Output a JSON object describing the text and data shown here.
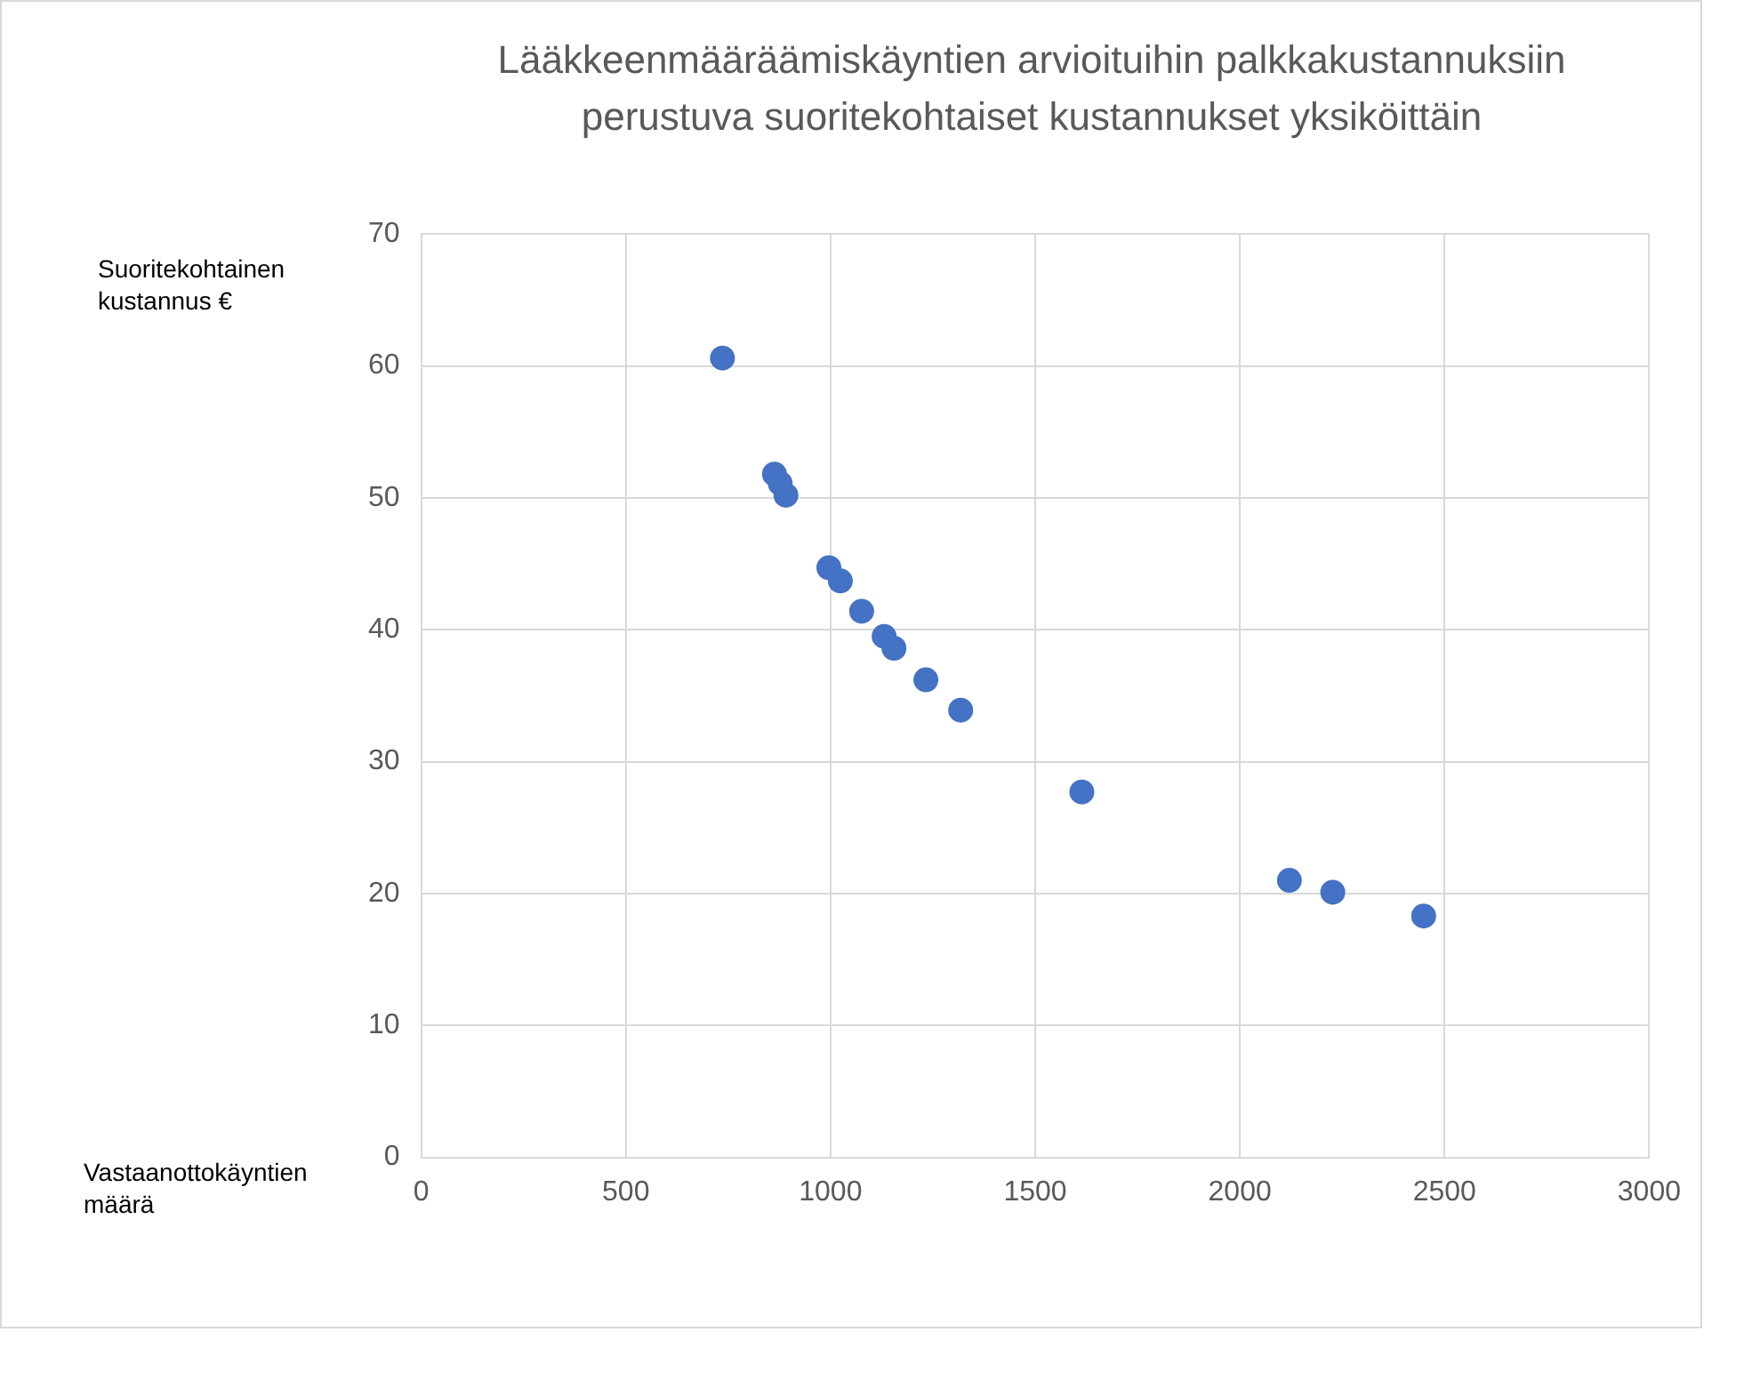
{
  "chart_data": {
    "type": "scatter",
    "title": "Lääkkeenmääräämiskäyntien arvioituihin palkkakustannuksiin\nperustuva suoritekohtaiset kustannukset yksiköittäin",
    "ylabel": "Suoritekohtainen\nkustannus €",
    "xlabel": "Vastaanottokäyntien\nmäärä",
    "x": [
      736,
      863,
      877,
      891,
      996,
      1024,
      1076,
      1131,
      1155,
      1233,
      1318,
      1614,
      2121,
      2227,
      2449
    ],
    "series": [
      {
        "color": "#4472c4",
        "values": [
          60.6,
          51.8,
          51.1,
          50.2,
          44.7,
          43.7,
          41.4,
          39.5,
          38.6,
          36.2,
          33.9,
          27.7,
          21.0,
          20.1,
          18.3
        ]
      }
    ],
    "xlim": [
      0,
      3000
    ],
    "xticks": [
      0,
      500,
      1000,
      1500,
      2000,
      2500,
      3000
    ],
    "ylim": [
      0,
      70
    ],
    "yticks": [
      0,
      10,
      20,
      30,
      40,
      50,
      60,
      70
    ],
    "grid": true,
    "marker": "circle",
    "legend": false
  }
}
